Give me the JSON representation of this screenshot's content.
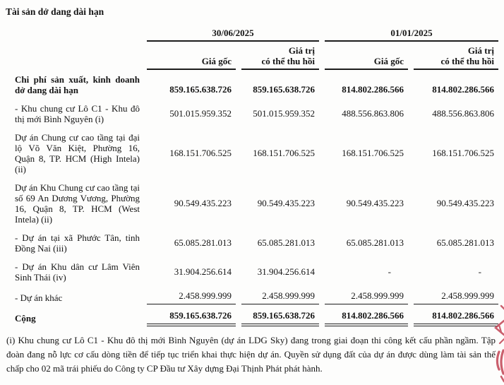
{
  "title": "Tài sản dở dang dài hạn",
  "table": {
    "periods": [
      "30/06/2025",
      "01/01/2025"
    ],
    "sub_headers": [
      "Giá gốc",
      "Giá trị\ncó thể thu hồi",
      "Giá gốc",
      "Giá trị\ncó thể thu hồi"
    ],
    "rows": [
      {
        "kind": "group-total",
        "label": "Chi phí sản xuất, kinh doanh dở dang dài hạn",
        "values": [
          "859.165.638.726",
          "859.165.638.726",
          "814.802.286.566",
          "814.802.286.566"
        ]
      },
      {
        "kind": "item",
        "label": "- Khu chung cư Lô C1 - Khu đô thị mới Bình Nguyên (i)",
        "values": [
          "501.015.959.352",
          "501.015.959.352",
          "488.556.863.806",
          "488.556.863.806"
        ]
      },
      {
        "kind": "item",
        "label": "Dự án Chung cư cao tầng tại đại lộ Võ Văn Kiệt, Phường 16, Quận 8, TP. HCM (High Intela) (ii)",
        "values": [
          "168.151.706.525",
          "168.151.706.525",
          "168.151.706.525",
          "168.151.706.525"
        ]
      },
      {
        "kind": "item",
        "label": "Dự án Khu Chung cư cao tầng tại số 69 An Dương Vương, Phường 16, Quận 8, TP. HCM (West Intela) (ii)",
        "values": [
          "90.549.435.223",
          "90.549.435.223",
          "90.549.435.223",
          "90.549.435.223"
        ]
      },
      {
        "kind": "item",
        "label": "- Dự án tại xã Phước Tân, tỉnh Đồng Nai (iii)",
        "values": [
          "65.085.281.013",
          "65.085.281.013",
          "65.085.281.013",
          "65.085.281.013"
        ]
      },
      {
        "kind": "item",
        "label": "- Dự án Khu dân cư Lâm Viên Sinh Thái (iv)",
        "values": [
          "31.904.256.614",
          "31.904.256.614",
          "-",
          "-"
        ]
      },
      {
        "kind": "item",
        "label": "- Dự án khác",
        "values": [
          "2.458.999.999",
          "2.458.999.999",
          "2.458.999.999",
          "2.458.999.999"
        ]
      },
      {
        "kind": "grand-total",
        "label": "Cộng",
        "values": [
          "859.165.638.726",
          "859.165.638.726",
          "814.802.286.566",
          "814.802.286.566"
        ]
      }
    ]
  },
  "footnote": "(i) Khu chung cư Lô C1 - Khu đô thị mới Bình Nguyên (dự án LDG Sky) đang trong giai đoạn thi công kết cấu phần ngầm. Tập đoàn đang nỗ lực cơ cấu dòng tiền để tiếp tục triển khai thực hiện dự án. Quyền sử dụng đất của dự án được dùng làm tài sản thế chấp cho 02 mã trái phiếu do Công ty CP Đầu tư Xây dựng Đại Thịnh Phát phát hành.",
  "stamp_color": "#c44a5a"
}
